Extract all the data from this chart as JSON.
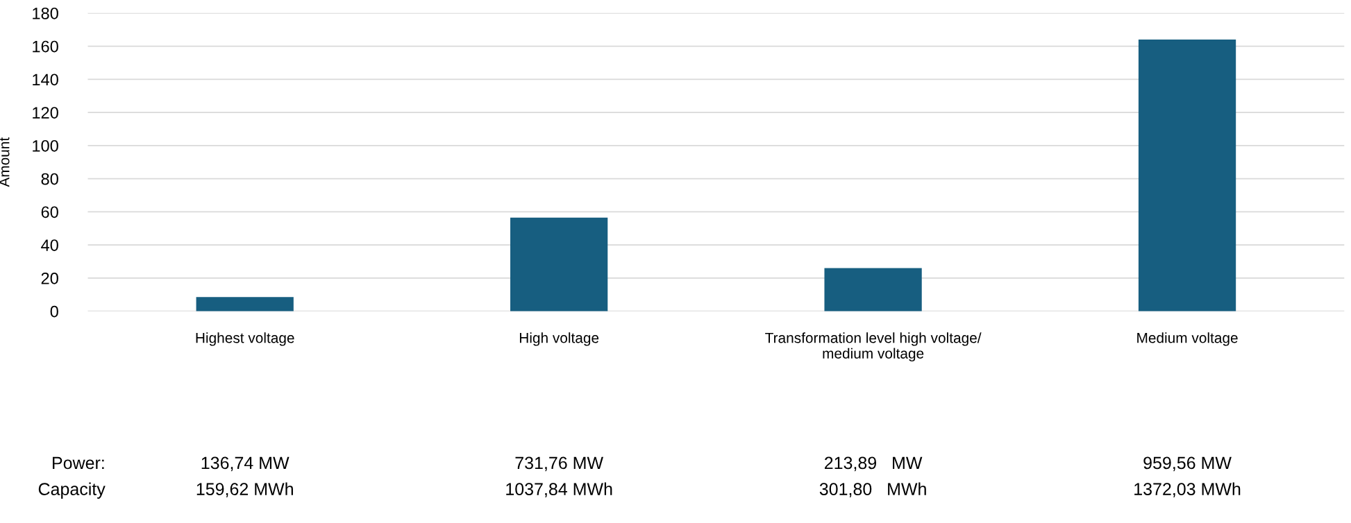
{
  "chart_data": {
    "type": "bar",
    "ylabel": "Amount",
    "categories": [
      "Highest voltage",
      "High voltage",
      "Transformation level high voltage/\nmedium voltage",
      "Medium voltage"
    ],
    "values": [
      8.5,
      56.5,
      26,
      164
    ],
    "color": "#175e80",
    "ylim": [
      0,
      180
    ],
    "yticks": [
      0,
      20,
      40,
      60,
      80,
      100,
      120,
      140,
      160,
      180
    ],
    "grid": "y",
    "annotations": [
      "Power:",
      "Capacity",
      "136,74 MW",
      "159,62 MWh",
      "731,76 MW",
      "1037,84 MWh",
      "213,89   MW",
      "301,80   MWh",
      "959,56 MW",
      "1372,03 MWh"
    ]
  }
}
